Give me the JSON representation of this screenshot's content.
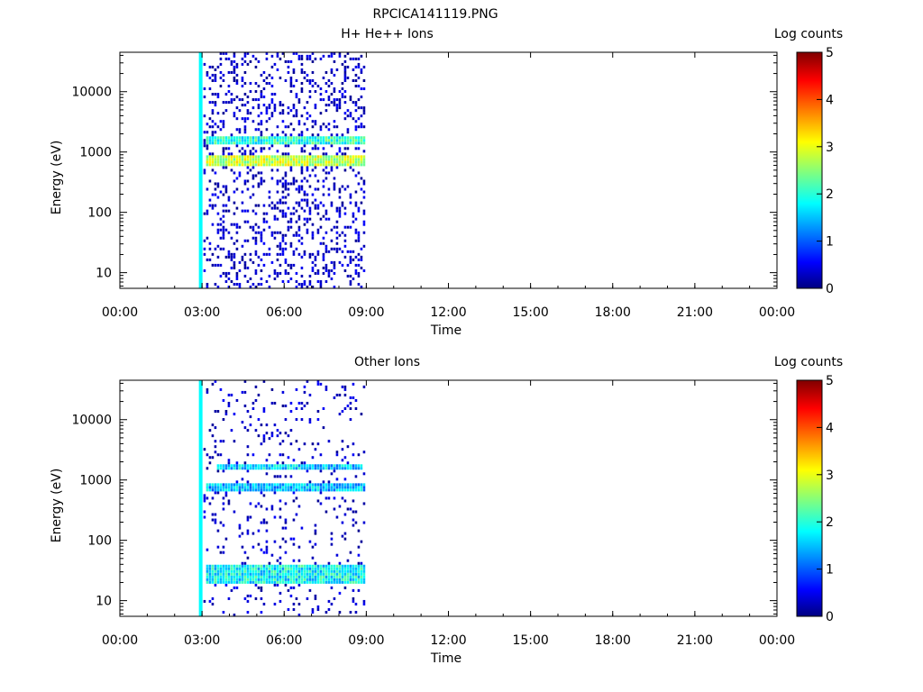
{
  "page_title": "RPCICA141119.PNG",
  "chart_data": [
    {
      "type": "heatmap",
      "title": "H+ He++ Ions",
      "xlabel": "Time",
      "ylabel": "Energy (eV)",
      "y_scale": "log",
      "xlim": [
        "00:00",
        "24:00"
      ],
      "ylim": [
        5.5,
        45000
      ],
      "xticks": [
        "00:00",
        "03:00",
        "06:00",
        "09:00",
        "12:00",
        "15:00",
        "18:00",
        "21:00",
        "00:00"
      ],
      "yticks": [
        "10",
        "100",
        "1000",
        "10000"
      ],
      "colorbar": {
        "label": "Log counts",
        "min": 0,
        "max": 5,
        "ticks": [
          "0",
          "1",
          "2",
          "3",
          "4",
          "5"
        ]
      },
      "data_extent_hours": [
        3.05,
        8.95
      ],
      "bands": [
        {
          "energy_range_eV": [
            1300,
            1800
          ],
          "log_counts": 2.0,
          "hours": [
            3.1,
            8.9
          ]
        },
        {
          "energy_range_eV": [
            550,
            850
          ],
          "log_counts": 2.8,
          "hours": [
            3.1,
            8.9
          ]
        }
      ],
      "grid": false
    },
    {
      "type": "heatmap",
      "title": "Other Ions",
      "xlabel": "Time",
      "ylabel": "Energy (eV)",
      "y_scale": "log",
      "xlim": [
        "00:00",
        "24:00"
      ],
      "ylim": [
        5.5,
        45000
      ],
      "xticks": [
        "00:00",
        "03:00",
        "06:00",
        "09:00",
        "12:00",
        "15:00",
        "18:00",
        "21:00",
        "00:00"
      ],
      "yticks": [
        "10",
        "100",
        "1000",
        "10000"
      ],
      "colorbar": {
        "label": "Log counts",
        "min": 0,
        "max": 5,
        "ticks": [
          "0",
          "1",
          "2",
          "3",
          "4",
          "5"
        ]
      },
      "data_extent_hours": [
        3.05,
        8.95
      ],
      "bands": [
        {
          "energy_range_eV": [
            1350,
            1700
          ],
          "log_counts": 1.6,
          "hours": [
            3.5,
            8.8
          ]
        },
        {
          "energy_range_eV": [
            620,
            820
          ],
          "log_counts": 1.5,
          "hours": [
            3.1,
            8.9
          ]
        },
        {
          "energy_range_eV": [
            18,
            38
          ],
          "log_counts": 1.8,
          "hours": [
            3.1,
            8.9
          ]
        }
      ],
      "grid": false
    }
  ]
}
